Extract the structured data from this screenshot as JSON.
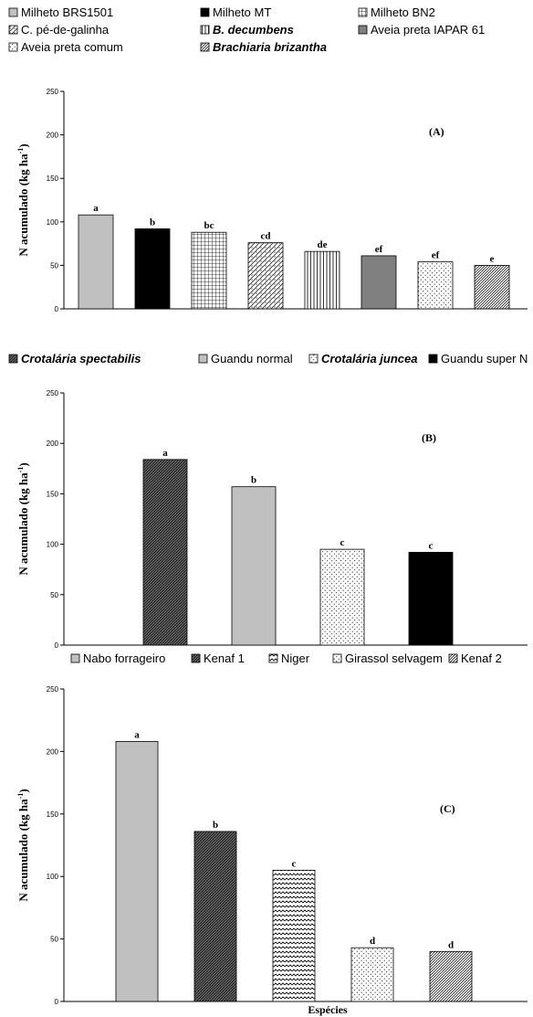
{
  "chart_data": [
    {
      "type": "bar",
      "panel_label": "(A)",
      "ylabel": "N acumulado (kg ha-1)",
      "ylabel_main": "N acumulado (kg ha",
      "ylabel_sup": "-1",
      "ylabel_close": ")",
      "ylim": [
        0,
        250
      ],
      "yticks": [
        "0",
        "50",
        "100",
        "150",
        "200",
        "250"
      ],
      "categories": [
        "Milheto BRS1501",
        "Milheto MT",
        "Milheto BN2",
        "C. pé-de-galinha",
        "B. decumbens",
        "Aveia preta IAPAR 61",
        "Aveia preta comum",
        "Brachiaria brizantha"
      ],
      "italic": [
        false,
        false,
        false,
        false,
        true,
        false,
        false,
        true
      ],
      "values": [
        108,
        92,
        88,
        76,
        66,
        61,
        54,
        50
      ],
      "letters": [
        "a",
        "b",
        "bc",
        "cd",
        "de",
        "ef",
        "ef",
        "e"
      ],
      "patterns": [
        "solid-gray",
        "solid-black",
        "grid",
        "dotdiag",
        "vlines",
        "darkgray",
        "dots",
        "diag"
      ],
      "legend_position": "top"
    },
    {
      "type": "bar",
      "panel_label": "(B)",
      "ylabel": "N acumulado (kg ha-1)",
      "ylabel_main": "N acumulado (kg ha",
      "ylabel_sup": "-1",
      "ylabel_close": ")",
      "ylim": [
        0,
        250
      ],
      "yticks": [
        "0",
        "50",
        "100",
        "150",
        "200",
        "250"
      ],
      "categories": [
        "Crotalária spectabilis",
        "Guandu normal",
        "Crotalária juncea",
        "Guandu super N"
      ],
      "italic": [
        true,
        false,
        true,
        false
      ],
      "values": [
        184,
        157,
        95,
        92
      ],
      "letters": [
        "a",
        "b",
        "c",
        "c"
      ],
      "patterns": [
        "darkhatch",
        "solid-gray",
        "dots",
        "solid-black"
      ],
      "legend_position": "top"
    },
    {
      "type": "bar",
      "panel_label": "(C)",
      "ylabel": "N acumulado (kg ha-1)",
      "ylabel_main": "N acumulado (kg ha",
      "ylabel_sup": "-1",
      "ylabel_close": ")",
      "xlabel": "Espécies",
      "ylim": [
        0,
        250
      ],
      "yticks": [
        "0",
        "50",
        "100",
        "150",
        "200",
        "250"
      ],
      "categories": [
        "Nabo forrageiro",
        "Kenaf 1",
        "Niger",
        "Girassol selvagem",
        "Kenaf 2"
      ],
      "italic": [
        false,
        false,
        false,
        false,
        false
      ],
      "values": [
        208,
        136,
        105,
        43,
        40
      ],
      "letters": [
        "a",
        "b",
        "c",
        "d",
        "d"
      ],
      "patterns": [
        "solid-gray",
        "darkhatch",
        "zigzag",
        "dots",
        "diag"
      ],
      "legend_position": "top"
    }
  ]
}
